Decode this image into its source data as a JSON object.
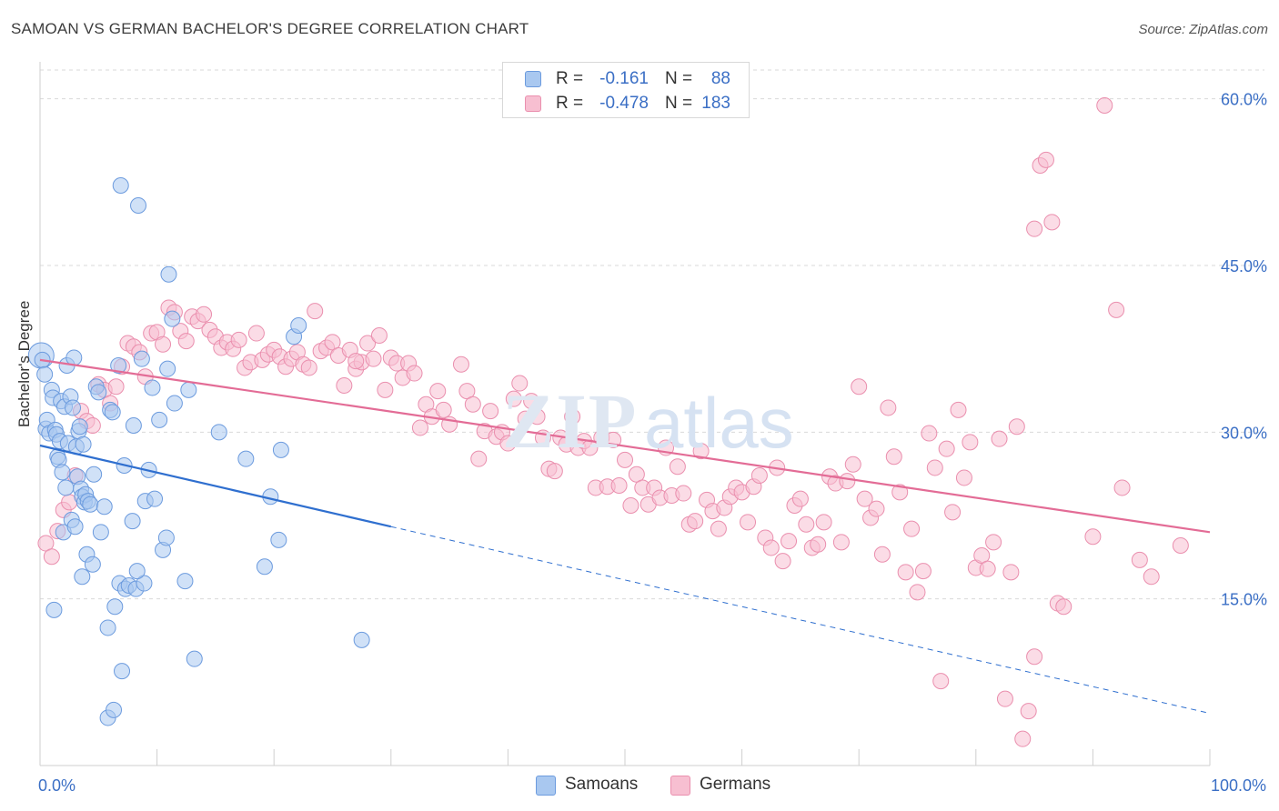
{
  "header": {
    "title": "SAMOAN VS GERMAN BACHELOR'S DEGREE CORRELATION CHART",
    "source": "Source: ZipAtlas.com"
  },
  "legend_top": {
    "samoans": {
      "r_label": "R =",
      "r_value": "-0.161",
      "n_label": "N =",
      "n_value": "88"
    },
    "germans": {
      "r_label": "R =",
      "r_value": "-0.478",
      "n_label": "N =",
      "n_value": "183"
    }
  },
  "legend_bottom": {
    "samoans": "Samoans",
    "germans": "Germans"
  },
  "colors": {
    "samoans_fill": "#a9c8f0",
    "samoans_stroke": "#6c9bde",
    "samoans_line": "#2f6fcf",
    "germans_fill": "#f7bfd1",
    "germans_stroke": "#ea8fae",
    "germans_line": "#e36c96",
    "tick_label": "#3b6fc5",
    "grid": "#d9d9d9"
  },
  "chart_data": {
    "type": "scatter",
    "title": "SAMOAN VS GERMAN BACHELOR'S DEGREE CORRELATION CHART",
    "xlabel": "",
    "ylabel": "Bachelor's Degree",
    "xlim": [
      0,
      100
    ],
    "ylim": [
      0,
      63
    ],
    "x_tick_labels": [
      {
        "value": 0,
        "label": "0.0%"
      },
      {
        "value": 100,
        "label": "100.0%"
      }
    ],
    "y_tick_labels": [
      {
        "value": 15,
        "label": "15.0%"
      },
      {
        "value": 30,
        "label": "30.0%"
      },
      {
        "value": 45,
        "label": "45.0%"
      },
      {
        "value": 60,
        "label": "60.0%"
      }
    ],
    "grid": true,
    "legend_position": "bottom",
    "series": [
      {
        "name": "Samoans",
        "trend": {
          "x0": 0,
          "y0": 28.8,
          "x1": 30,
          "y1": 21.5,
          "dashed_to_x": 100,
          "dashed_to_y": 4.7
        },
        "points": [
          [
            0.1,
            36.9
          ],
          [
            0.2,
            36.5
          ],
          [
            0.4,
            35.2
          ],
          [
            0.5,
            30.3
          ],
          [
            0.6,
            31.1
          ],
          [
            0.8,
            29.9
          ],
          [
            1.0,
            33.8
          ],
          [
            1.1,
            33.1
          ],
          [
            1.3,
            30.2
          ],
          [
            1.4,
            29.8
          ],
          [
            1.5,
            27.8
          ],
          [
            1.6,
            27.5
          ],
          [
            1.7,
            29.2
          ],
          [
            1.8,
            32.8
          ],
          [
            1.9,
            26.4
          ],
          [
            2.0,
            21.0
          ],
          [
            2.1,
            32.3
          ],
          [
            2.3,
            36.0
          ],
          [
            2.4,
            29.0
          ],
          [
            2.6,
            33.2
          ],
          [
            2.7,
            22.1
          ],
          [
            2.8,
            32.2
          ],
          [
            2.9,
            36.7
          ],
          [
            3.0,
            21.5
          ],
          [
            3.1,
            28.7
          ],
          [
            3.2,
            26.0
          ],
          [
            3.3,
            30.1
          ],
          [
            3.4,
            30.5
          ],
          [
            3.5,
            24.9
          ],
          [
            3.6,
            24.2
          ],
          [
            3.7,
            28.9
          ],
          [
            3.8,
            23.7
          ],
          [
            3.9,
            24.4
          ],
          [
            4.0,
            19.0
          ],
          [
            4.1,
            23.8
          ],
          [
            4.3,
            23.5
          ],
          [
            4.5,
            18.1
          ],
          [
            4.8,
            34.1
          ],
          [
            5.0,
            33.6
          ],
          [
            5.2,
            21.0
          ],
          [
            5.5,
            23.3
          ],
          [
            5.8,
            12.4
          ],
          [
            6.0,
            32.0
          ],
          [
            6.2,
            31.8
          ],
          [
            6.4,
            14.3
          ],
          [
            6.7,
            36.0
          ],
          [
            6.8,
            16.4
          ],
          [
            6.9,
            52.2
          ],
          [
            7.0,
            8.5
          ],
          [
            7.3,
            15.9
          ],
          [
            7.6,
            16.2
          ],
          [
            7.9,
            22.0
          ],
          [
            8.0,
            30.6
          ],
          [
            8.2,
            15.9
          ],
          [
            8.4,
            50.4
          ],
          [
            8.7,
            36.6
          ],
          [
            8.9,
            16.4
          ],
          [
            9.0,
            23.8
          ],
          [
            9.3,
            26.6
          ],
          [
            9.8,
            24.0
          ],
          [
            10.2,
            31.1
          ],
          [
            10.5,
            19.4
          ],
          [
            10.8,
            20.5
          ],
          [
            10.9,
            35.7
          ],
          [
            11.0,
            44.2
          ],
          [
            11.3,
            40.2
          ],
          [
            11.5,
            32.6
          ],
          [
            12.4,
            16.6
          ],
          [
            12.7,
            33.8
          ],
          [
            13.2,
            9.6
          ],
          [
            15.3,
            30.0
          ],
          [
            17.6,
            27.6
          ],
          [
            19.2,
            17.9
          ],
          [
            19.7,
            24.2
          ],
          [
            20.4,
            20.3
          ],
          [
            20.6,
            28.4
          ],
          [
            21.7,
            38.6
          ],
          [
            22.1,
            39.6
          ],
          [
            27.5,
            11.3
          ],
          [
            5.8,
            4.3
          ],
          [
            6.3,
            5.0
          ],
          [
            1.2,
            14.0
          ],
          [
            3.6,
            17.0
          ],
          [
            2.2,
            25.0
          ],
          [
            4.6,
            26.2
          ],
          [
            7.2,
            27.0
          ],
          [
            9.6,
            34.0
          ],
          [
            8.3,
            17.5
          ]
        ]
      },
      {
        "name": "Germans",
        "trend": {
          "x0": 0,
          "y0": 36.5,
          "x1": 100,
          "y1": 21.0
        },
        "points": [
          [
            0.5,
            20.0
          ],
          [
            1.0,
            18.8
          ],
          [
            1.5,
            21.1
          ],
          [
            2.0,
            23.0
          ],
          [
            2.5,
            23.7
          ],
          [
            3.0,
            26.1
          ],
          [
            3.5,
            31.9
          ],
          [
            4.0,
            31.0
          ],
          [
            4.5,
            30.6
          ],
          [
            5.0,
            34.3
          ],
          [
            5.5,
            33.8
          ],
          [
            6.0,
            32.6
          ],
          [
            6.5,
            34.1
          ],
          [
            7.0,
            35.9
          ],
          [
            7.5,
            38.0
          ],
          [
            8.0,
            37.7
          ],
          [
            8.5,
            37.2
          ],
          [
            9.0,
            35.0
          ],
          [
            9.5,
            38.9
          ],
          [
            10.0,
            39.0
          ],
          [
            10.5,
            37.9
          ],
          [
            11.0,
            41.2
          ],
          [
            11.5,
            40.8
          ],
          [
            12.0,
            39.1
          ],
          [
            12.5,
            38.2
          ],
          [
            13.0,
            40.4
          ],
          [
            13.5,
            40.0
          ],
          [
            14.0,
            40.6
          ],
          [
            14.5,
            39.2
          ],
          [
            15.0,
            38.6
          ],
          [
            15.5,
            37.6
          ],
          [
            16.0,
            38.1
          ],
          [
            16.5,
            37.5
          ],
          [
            17.0,
            38.3
          ],
          [
            17.5,
            35.8
          ],
          [
            18.0,
            36.3
          ],
          [
            18.5,
            38.9
          ],
          [
            19.0,
            36.5
          ],
          [
            19.5,
            37.0
          ],
          [
            20.0,
            37.4
          ],
          [
            20.5,
            36.8
          ],
          [
            21.0,
            35.9
          ],
          [
            21.5,
            36.6
          ],
          [
            22.0,
            37.2
          ],
          [
            22.5,
            36.1
          ],
          [
            23.0,
            35.8
          ],
          [
            23.5,
            40.9
          ],
          [
            24.0,
            37.3
          ],
          [
            24.5,
            37.6
          ],
          [
            25.0,
            38.1
          ],
          [
            25.5,
            36.9
          ],
          [
            26.0,
            34.2
          ],
          [
            26.5,
            37.4
          ],
          [
            27.0,
            35.7
          ],
          [
            27.5,
            36.3
          ],
          [
            28.0,
            38.0
          ],
          [
            28.5,
            36.6
          ],
          [
            29.0,
            38.7
          ],
          [
            29.5,
            33.8
          ],
          [
            30.0,
            36.7
          ],
          [
            30.5,
            36.2
          ],
          [
            31.0,
            34.9
          ],
          [
            31.5,
            36.2
          ],
          [
            32.0,
            35.3
          ],
          [
            32.5,
            30.4
          ],
          [
            33.0,
            32.5
          ],
          [
            33.5,
            31.4
          ],
          [
            34.0,
            33.7
          ],
          [
            34.5,
            32.0
          ],
          [
            35.0,
            30.7
          ],
          [
            36.0,
            36.1
          ],
          [
            36.5,
            33.7
          ],
          [
            37.0,
            32.5
          ],
          [
            37.5,
            27.6
          ],
          [
            38.0,
            30.1
          ],
          [
            38.5,
            31.9
          ],
          [
            39.0,
            29.6
          ],
          [
            39.5,
            30.0
          ],
          [
            40.0,
            29.0
          ],
          [
            40.5,
            33.0
          ],
          [
            41.0,
            34.4
          ],
          [
            41.5,
            31.2
          ],
          [
            42.0,
            32.8
          ],
          [
            42.5,
            31.4
          ],
          [
            43.0,
            29.5
          ],
          [
            43.5,
            26.7
          ],
          [
            44.0,
            26.5
          ],
          [
            44.5,
            29.5
          ],
          [
            45.0,
            28.9
          ],
          [
            45.5,
            31.4
          ],
          [
            46.0,
            28.6
          ],
          [
            46.5,
            29.2
          ],
          [
            47.0,
            28.6
          ],
          [
            47.5,
            25.0
          ],
          [
            48.0,
            29.5
          ],
          [
            48.5,
            25.1
          ],
          [
            49.0,
            29.3
          ],
          [
            49.5,
            25.2
          ],
          [
            50.0,
            27.5
          ],
          [
            50.5,
            23.4
          ],
          [
            51.0,
            26.2
          ],
          [
            51.5,
            25.0
          ],
          [
            52.0,
            23.5
          ],
          [
            52.5,
            25.0
          ],
          [
            53.0,
            24.1
          ],
          [
            53.5,
            28.6
          ],
          [
            54.0,
            24.3
          ],
          [
            54.5,
            26.9
          ],
          [
            55.0,
            24.5
          ],
          [
            55.5,
            21.7
          ],
          [
            56.0,
            22.0
          ],
          [
            56.5,
            28.3
          ],
          [
            57.0,
            23.9
          ],
          [
            57.5,
            22.9
          ],
          [
            58.0,
            21.3
          ],
          [
            58.5,
            23.2
          ],
          [
            59.0,
            24.2
          ],
          [
            59.5,
            25.0
          ],
          [
            60.0,
            24.6
          ],
          [
            60.5,
            21.9
          ],
          [
            61.0,
            25.1
          ],
          [
            61.5,
            26.1
          ],
          [
            62.0,
            20.5
          ],
          [
            62.5,
            19.6
          ],
          [
            63.0,
            26.8
          ],
          [
            63.5,
            18.4
          ],
          [
            64.0,
            20.2
          ],
          [
            64.5,
            23.4
          ],
          [
            65.0,
            24.0
          ],
          [
            65.5,
            21.7
          ],
          [
            66.0,
            19.6
          ],
          [
            66.5,
            19.9
          ],
          [
            67.0,
            21.9
          ],
          [
            67.5,
            26.0
          ],
          [
            68.0,
            25.4
          ],
          [
            68.5,
            20.1
          ],
          [
            69.0,
            25.6
          ],
          [
            69.5,
            27.1
          ],
          [
            70.0,
            34.1
          ],
          [
            70.5,
            24.0
          ],
          [
            71.0,
            22.3
          ],
          [
            71.5,
            23.1
          ],
          [
            72.0,
            19.0
          ],
          [
            72.5,
            32.2
          ],
          [
            73.0,
            27.8
          ],
          [
            73.5,
            24.6
          ],
          [
            74.0,
            17.4
          ],
          [
            74.5,
            21.3
          ],
          [
            75.0,
            15.6
          ],
          [
            75.5,
            17.5
          ],
          [
            76.0,
            29.9
          ],
          [
            76.5,
            26.8
          ],
          [
            77.0,
            7.6
          ],
          [
            77.5,
            28.5
          ],
          [
            78.0,
            22.8
          ],
          [
            78.5,
            32.0
          ],
          [
            79.0,
            25.9
          ],
          [
            79.5,
            29.1
          ],
          [
            80.0,
            17.8
          ],
          [
            80.5,
            18.9
          ],
          [
            81.0,
            17.7
          ],
          [
            81.5,
            20.1
          ],
          [
            82.0,
            29.4
          ],
          [
            82.5,
            6.0
          ],
          [
            83.0,
            17.4
          ],
          [
            83.5,
            30.5
          ],
          [
            84.0,
            2.4
          ],
          [
            84.5,
            4.9
          ],
          [
            85.0,
            9.8
          ],
          [
            85.5,
            54.0
          ],
          [
            86.0,
            54.5
          ],
          [
            86.5,
            48.9
          ],
          [
            87.0,
            14.6
          ],
          [
            87.5,
            14.3
          ],
          [
            85.0,
            48.3
          ],
          [
            90.0,
            20.6
          ],
          [
            91.0,
            59.4
          ],
          [
            92.0,
            41.0
          ],
          [
            92.5,
            25.0
          ],
          [
            94.0,
            18.5
          ],
          [
            95.0,
            17.0
          ],
          [
            97.5,
            19.8
          ],
          [
            27.0,
            36.4
          ]
        ]
      }
    ]
  }
}
